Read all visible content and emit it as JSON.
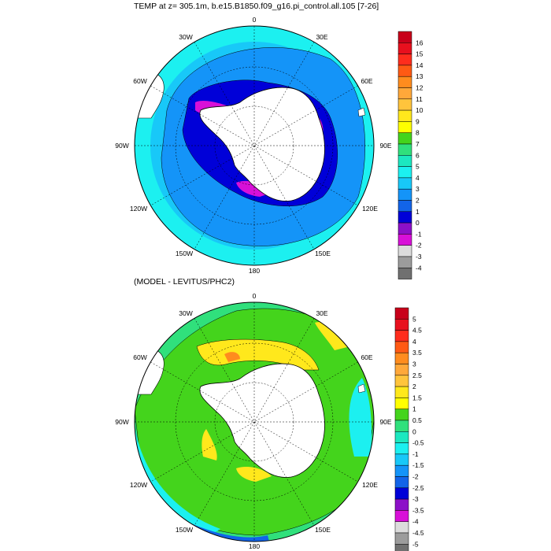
{
  "titles": {
    "top": "TEMP at z= 305.1m, b.e15.B1850.f09_g16.pi_control.all.105 [7-26]",
    "bottom": "(MODEL - LEVITUS/PHC2)"
  },
  "longitude_labels": [
    "0",
    "30E",
    "60E",
    "90E",
    "120E",
    "150E",
    "180",
    "150W",
    "120W",
    "90W",
    "60W",
    "30W"
  ],
  "colorbar_top": {
    "labels": [
      "16",
      "15",
      "14",
      "13",
      "12",
      "11",
      "10",
      "9",
      "8",
      "7",
      "6",
      "5",
      "4",
      "3",
      "2",
      "1",
      "0",
      "-1",
      "-2",
      "-3",
      "-4"
    ],
    "colors": [
      "#c8001a",
      "#e8101e",
      "#ff2d1d",
      "#ff5a14",
      "#ff8c1e",
      "#ffa83a",
      "#ffc43c",
      "#ffe81c",
      "#ffff00",
      "#44d41c",
      "#30e07c",
      "#1ce8c0",
      "#1cf0f0",
      "#18c8f8",
      "#1494f8",
      "#1264e8",
      "#0000d8",
      "#8c10c8",
      "#d810d8",
      "#dcdcdc",
      "#9c9c9c",
      "#707070"
    ]
  },
  "colorbar_bottom": {
    "labels": [
      "5",
      "4.5",
      "4",
      "3.5",
      "3",
      "2.5",
      "2",
      "1.5",
      "1",
      "0.5",
      "0",
      "-0.5",
      "-1",
      "-1.5",
      "-2",
      "-2.5",
      "-3",
      "-3.5",
      "-4",
      "-4.5",
      "-5"
    ],
    "colors": [
      "#c8001a",
      "#e8101e",
      "#ff2d1d",
      "#ff5a14",
      "#ff8c1e",
      "#ffa83a",
      "#ffc43c",
      "#ffe81c",
      "#ffff00",
      "#44d41c",
      "#30e07c",
      "#1ce8c0",
      "#1cf0f0",
      "#18c8f8",
      "#1494f8",
      "#1264e8",
      "#0000d8",
      "#8c10c8",
      "#d810d8",
      "#dcdcdc",
      "#9c9c9c",
      "#707070"
    ]
  },
  "colors": {
    "land": "#ffffff",
    "ocean_top_base": "#1494f8",
    "ocean_bottom_base": "#44d41c"
  }
}
